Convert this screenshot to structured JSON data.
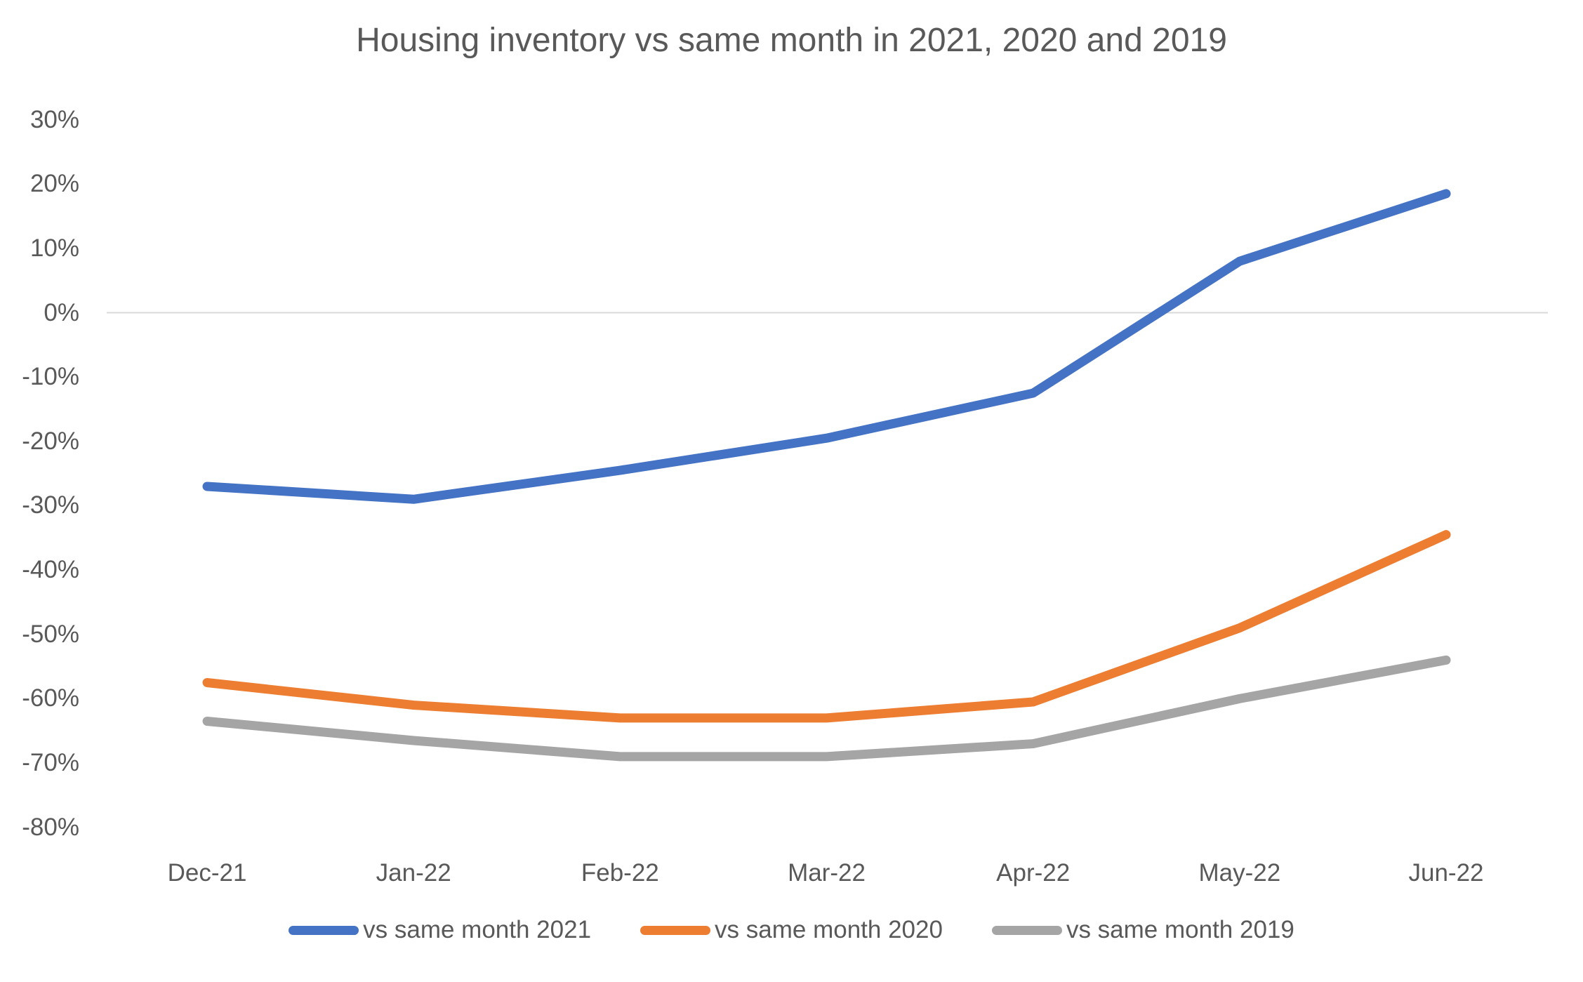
{
  "chart_data": {
    "type": "line",
    "title": "Housing inventory vs same month in 2021, 2020 and 2019",
    "categories": [
      "Dec-21",
      "Jan-22",
      "Feb-22",
      "Mar-22",
      "Apr-22",
      "May-22",
      "Jun-22"
    ],
    "series": [
      {
        "name": "vs same month 2021",
        "color": "#4472C4",
        "values": [
          -27,
          -29,
          -24.5,
          -19.5,
          -12.5,
          8,
          18.5
        ]
      },
      {
        "name": "vs same month 2020",
        "color": "#ED7D31",
        "values": [
          -57.5,
          -61,
          -63,
          -63,
          -60.5,
          -49,
          -34.5
        ]
      },
      {
        "name": "vs same month 2019",
        "color": "#A5A5A5",
        "values": [
          -63.5,
          -66.5,
          -69,
          -69,
          -67,
          -60,
          -54
        ]
      }
    ],
    "y_axis": {
      "ticks": [
        "30%",
        "20%",
        "10%",
        "0%",
        "-10%",
        "-20%",
        "-30%",
        "-40%",
        "-50%",
        "-60%",
        "-70%",
        "-80%"
      ],
      "tick_values": [
        30,
        20,
        10,
        0,
        -10,
        -20,
        -30,
        -40,
        -50,
        -60,
        -70,
        -80
      ],
      "min": -80,
      "max": 30
    },
    "xlabel": "",
    "ylabel": "",
    "grid": "zero-line-only",
    "legend_position": "bottom"
  },
  "style": {
    "text_color": "#595959",
    "gridline_color": "#D9D9D9",
    "background": "#FFFFFF"
  }
}
